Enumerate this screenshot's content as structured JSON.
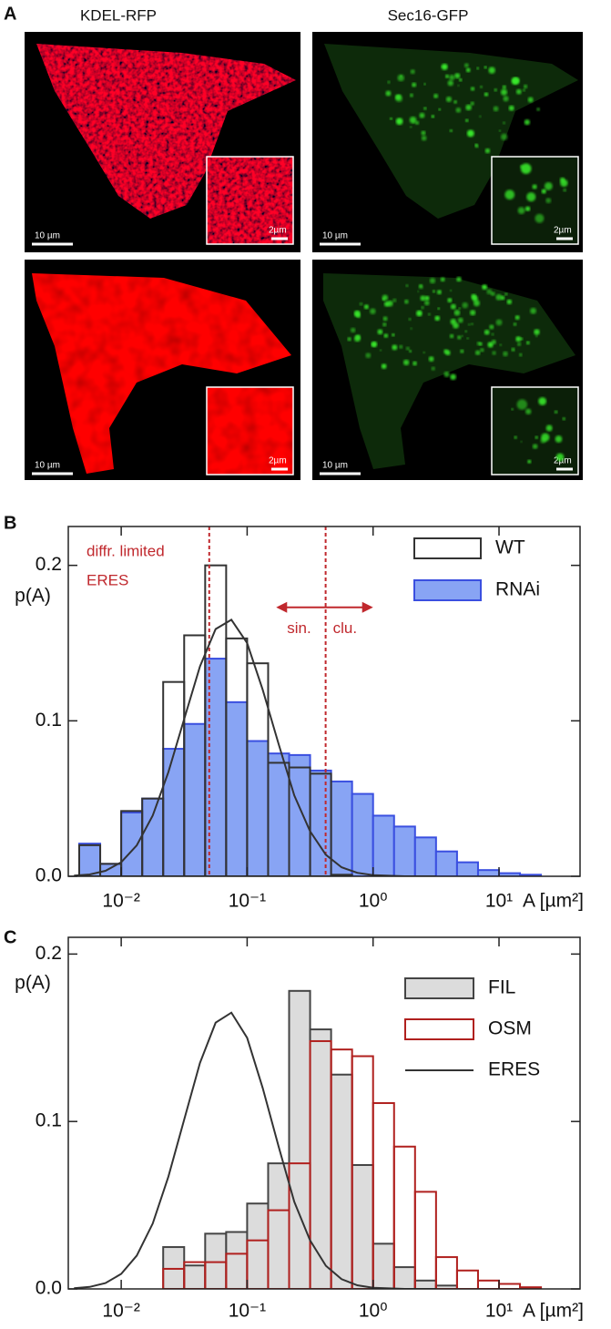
{
  "figure": {
    "panel_label": "A",
    "columns": [
      "KDEL-RFP",
      "Sec16-GFP"
    ],
    "scale_bar": "10 µm",
    "inset_scale_bar": "2µm"
  },
  "chart_data": [
    {
      "type": "histogram",
      "panel_label": "B",
      "y_label": "p(A)",
      "x_label": "A [µm²]",
      "xscale": "log",
      "xlim": [
        0.0038,
        44
      ],
      "ylim": [
        0,
        0.225
      ],
      "xticks": [
        {
          "value": 0.01,
          "label": "10⁻²"
        },
        {
          "value": 0.1,
          "label": "10⁻¹"
        },
        {
          "value": 1,
          "label": "10⁰"
        },
        {
          "value": 10,
          "label": "10¹"
        }
      ],
      "yticks": [
        {
          "value": 0,
          "label": "0.0"
        },
        0.1,
        0.2
      ],
      "bins": [
        0.00464,
        0.00681,
        0.01,
        0.01468,
        0.02154,
        0.03162,
        0.04642,
        0.06813,
        0.1,
        0.1468,
        0.2154,
        0.3162,
        0.4642,
        0.6813,
        1,
        1.468,
        2.154,
        3.162,
        4.642,
        6.813,
        10,
        14.68,
        21.54
      ],
      "series": [
        {
          "name": "WT",
          "color": "#333333",
          "fill": "none",
          "values": [
            0.02,
            0.008,
            0.042,
            0.05,
            0.125,
            0.155,
            0.2,
            0.153,
            0.137,
            0.073,
            0.07,
            0.066,
            0.001,
            0,
            0,
            0,
            0,
            0,
            0,
            0,
            0,
            0
          ]
        },
        {
          "name": "RNAi",
          "color": "#3a4fe0",
          "fill": "#88a4f4",
          "values": [
            0.021,
            0.008,
            0.041,
            0.05,
            0.082,
            0.098,
            0.14,
            0.112,
            0.087,
            0.079,
            0.078,
            0.068,
            0.061,
            0.053,
            0.039,
            0.032,
            0.025,
            0.016,
            0.009,
            0.004,
            0.002,
            0.001
          ]
        }
      ],
      "curve": {
        "color": "#333333",
        "x": [
          0.00422,
          0.00562,
          0.0075,
          0.01,
          0.0133,
          0.0178,
          0.0237,
          0.0316,
          0.0422,
          0.0562,
          0.075,
          0.1,
          0.133,
          0.178,
          0.237,
          0.316,
          0.422,
          0.562,
          0.75,
          1,
          1.78,
          3.16
        ],
        "values": [
          0.0004,
          0.0012,
          0.0035,
          0.009,
          0.0199,
          0.039,
          0.067,
          0.101,
          0.135,
          0.159,
          0.165,
          0.15,
          0.12,
          0.085,
          0.052,
          0.029,
          0.0138,
          0.0058,
          0.0022,
          0.0007,
          0,
          0
        ]
      },
      "reference_lines": [
        {
          "x": 0.05,
          "color": "#c0282d"
        },
        {
          "x": 0.42,
          "color": "#c0282d"
        }
      ],
      "arrow": {
        "x": [
          0.17,
          1
        ],
        "y": 0.173,
        "color": "#c0282d"
      },
      "annotations": [
        "diffr. limited",
        "ERES",
        "sin.",
        "clu."
      ]
    },
    {
      "type": "histogram",
      "panel_label": "C",
      "y_label": "p(A)",
      "x_label": "A [µm²]",
      "xscale": "log",
      "xlim": [
        0.0038,
        44
      ],
      "ylim": [
        0,
        0.21
      ],
      "xticks": [
        {
          "value": 0.01,
          "label": "10⁻²"
        },
        {
          "value": 0.1,
          "label": "10⁻¹"
        },
        {
          "value": 1,
          "label": "10⁰"
        },
        {
          "value": 10,
          "label": "10¹"
        }
      ],
      "yticks": [
        {
          "value": 0,
          "label": "0.0"
        },
        0.1,
        0.2
      ],
      "bins": [
        0.02154,
        0.03162,
        0.04642,
        0.06813,
        0.1,
        0.1468,
        0.2154,
        0.3162,
        0.4642,
        0.6813,
        1,
        1.468,
        2.154,
        3.162,
        4.642,
        6.813,
        10,
        14.68,
        21.54
      ],
      "series": [
        {
          "name": "FIL",
          "color": "#444444",
          "fill": "#dcdcdc",
          "values": [
            0.025,
            0.014,
            0.033,
            0.034,
            0.051,
            0.075,
            0.178,
            0.155,
            0.128,
            0.074,
            0.027,
            0.013,
            0.005,
            0.002,
            0,
            0,
            0,
            0
          ]
        },
        {
          "name": "OSM",
          "color": "#b0201e",
          "fill": "none",
          "values": [
            0.012,
            0.016,
            0.016,
            0.021,
            0.029,
            0.047,
            0.075,
            0.148,
            0.143,
            0.139,
            0.111,
            0.085,
            0.058,
            0.019,
            0.011,
            0.005,
            0.003,
            0.001
          ]
        }
      ],
      "curve": {
        "name": "ERES",
        "color": "#333333",
        "x": [
          0.00422,
          0.00562,
          0.0075,
          0.01,
          0.0133,
          0.0178,
          0.0237,
          0.0316,
          0.0422,
          0.0562,
          0.075,
          0.1,
          0.133,
          0.178,
          0.237,
          0.316,
          0.422,
          0.562,
          0.75,
          1,
          1.78,
          3.16
        ],
        "values": [
          0.0004,
          0.0012,
          0.0035,
          0.009,
          0.0199,
          0.039,
          0.067,
          0.101,
          0.135,
          0.159,
          0.165,
          0.15,
          0.12,
          0.085,
          0.052,
          0.029,
          0.0138,
          0.0058,
          0.0022,
          0.0007,
          0,
          0
        ]
      }
    }
  ]
}
